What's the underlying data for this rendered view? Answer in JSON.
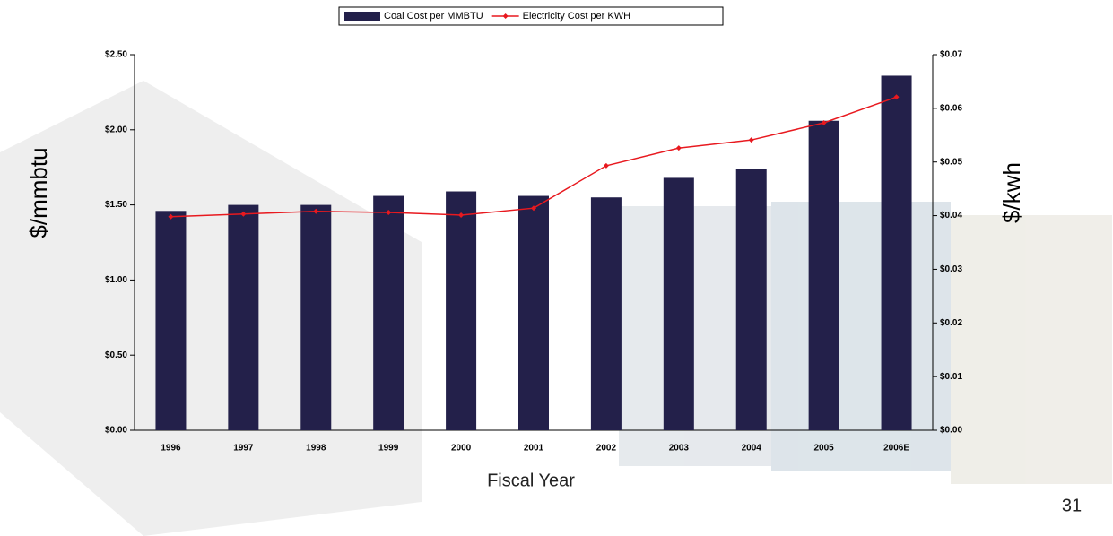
{
  "chart_data": {
    "type": "bar_line",
    "categories": [
      "1996",
      "1997",
      "1998",
      "1999",
      "2000",
      "2001",
      "2002",
      "2003",
      "2004",
      "2005",
      "2006E"
    ],
    "series": [
      {
        "name": "Coal Cost per MMBTU",
        "type": "bar",
        "color": "#23204a",
        "values": [
          1.46,
          1.5,
          1.5,
          1.56,
          1.59,
          1.56,
          1.55,
          1.68,
          1.74,
          2.06,
          2.36
        ]
      },
      {
        "name": "Electricity Cost per KWH",
        "type": "line",
        "axis": "y2",
        "color": "#e8191f",
        "values": [
          0.0398,
          0.0403,
          0.0408,
          0.0406,
          0.0401,
          0.0414,
          0.0493,
          0.0526,
          0.0541,
          0.0573,
          0.0621
        ]
      }
    ],
    "x_label": "Fiscal Year",
    "y_label": "$/mmbtu",
    "y2_label": "$/kwh",
    "ylim": [
      0,
      2.5
    ],
    "yticks": [
      {
        "value": 0,
        "label": "$0.00"
      },
      {
        "value": 0.5,
        "label": "$0.50"
      },
      {
        "value": 1,
        "label": "$1.00"
      },
      {
        "value": 1.5,
        "label": "$1.50"
      },
      {
        "value": 2,
        "label": "$2.00"
      },
      {
        "value": 2.5,
        "label": "$2.50"
      }
    ],
    "y2lim": [
      0,
      0.07
    ],
    "y2ticks": [
      {
        "value": 0,
        "label": "$0.00"
      },
      {
        "value": 0.01,
        "label": "$0.01"
      },
      {
        "value": 0.02,
        "label": "$0.02"
      },
      {
        "value": 0.03,
        "label": "$0.03"
      },
      {
        "value": 0.04,
        "label": "$0.04"
      },
      {
        "value": 0.05,
        "label": "$0.05"
      },
      {
        "value": 0.06,
        "label": "$0.06"
      },
      {
        "value": 0.07,
        "label": "$0.07"
      }
    ],
    "legend": "top"
  },
  "page_number": "31"
}
